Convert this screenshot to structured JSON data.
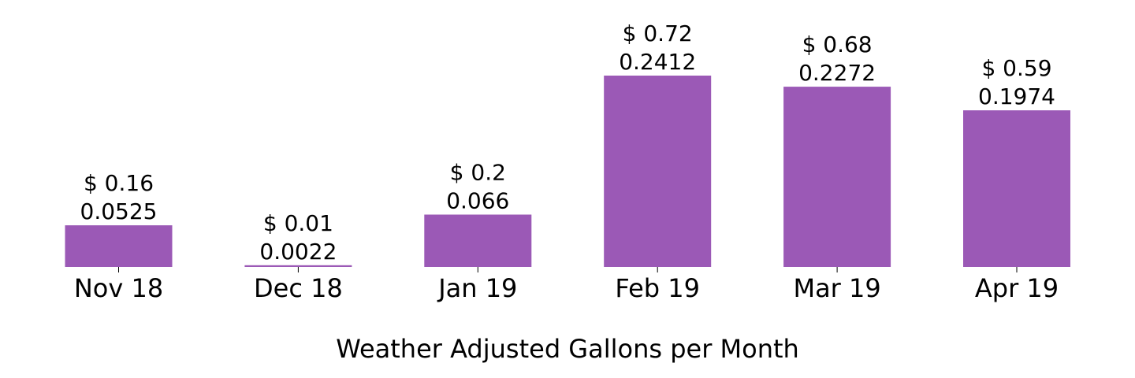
{
  "chart_data": {
    "type": "bar",
    "categories": [
      "Nov 18",
      "Dec 18",
      "Jan 19",
      "Feb 19",
      "Mar 19",
      "Apr 19"
    ],
    "values": [
      0.0525,
      0.0022,
      0.066,
      0.2412,
      0.2272,
      0.1974
    ],
    "cost_labels": [
      "$ 0.16",
      "$ 0.01",
      "$ 0.2",
      "$ 0.72",
      "$ 0.68",
      "$ 0.59"
    ],
    "value_labels": [
      "0.0525",
      "0.0022",
      "0.066",
      "0.2412",
      "0.2272",
      "0.1974"
    ],
    "title": "",
    "xlabel": "Weather Adjusted Gallons per Month",
    "ylabel": "",
    "ylim": [
      0,
      0.2412
    ],
    "grid": false,
    "bar_color": "#9b59b6"
  }
}
